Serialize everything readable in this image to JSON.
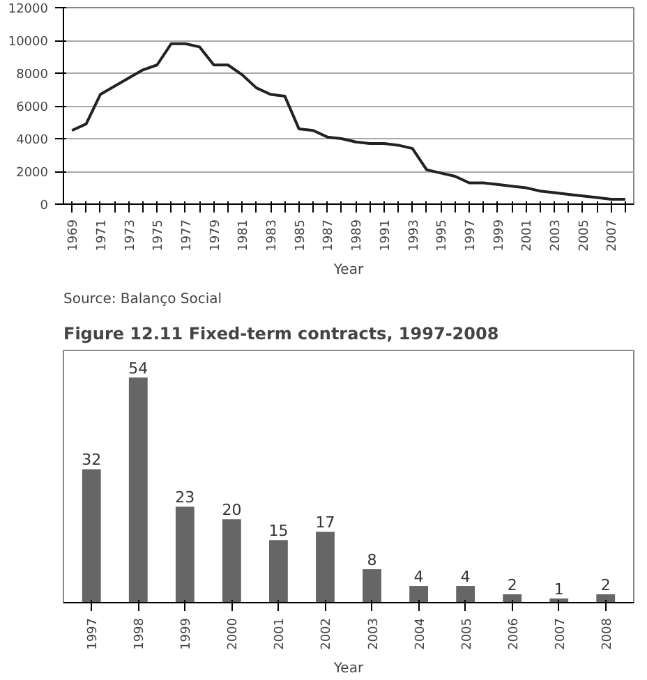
{
  "chart_data": [
    {
      "type": "line",
      "xlabel": "Year",
      "annotations": [
        "Source: Balanço Social"
      ],
      "categories": [
        "1969",
        null,
        "1971",
        null,
        "1973",
        null,
        "1975",
        null,
        "1977",
        null,
        "1979",
        null,
        "1981",
        null,
        "1983",
        null,
        "1985",
        null,
        "1987",
        null,
        "1989",
        null,
        "1991",
        null,
        "1993",
        null,
        "1995",
        null,
        "1997",
        null,
        "1999",
        null,
        "2001",
        null,
        "2003",
        null,
        "2005",
        null,
        "2007",
        null
      ],
      "series": [
        {
          "color": "#222222",
          "values": [
            4500,
            4900,
            6700,
            7200,
            7700,
            8200,
            8500,
            9800,
            9800,
            9600,
            8500,
            8500,
            7900,
            7100,
            6700,
            6600,
            4600,
            4500,
            4100,
            4000,
            3800,
            3700,
            3700,
            3600,
            3400,
            2100,
            1900,
            1700,
            1300,
            1300,
            1200,
            1100,
            1000,
            800,
            700,
            600,
            500,
            400,
            300,
            300
          ]
        }
      ],
      "ylim": [
        0,
        12000
      ],
      "yticks": [
        0,
        2000,
        4000,
        6000,
        8000,
        10000,
        12000
      ],
      "grid": "y",
      "marker": "none",
      "line_style": "solid"
    },
    {
      "type": "bar",
      "title": "Figure 12.11 Fixed-term contracts, 1997-2008",
      "xlabel": "Year",
      "categories": [
        "1997",
        "1998",
        "1999",
        "2000",
        "2001",
        "2002",
        "2003",
        "2004",
        "2005",
        "2006",
        "2007",
        "2008"
      ],
      "series": [
        {
          "color": "#666666",
          "values": [
            32,
            54,
            23,
            20,
            15,
            17,
            8,
            4,
            4,
            2,
            1,
            2
          ]
        }
      ],
      "data_labels": true,
      "tick_labels": "x",
      "grid": false
    }
  ]
}
